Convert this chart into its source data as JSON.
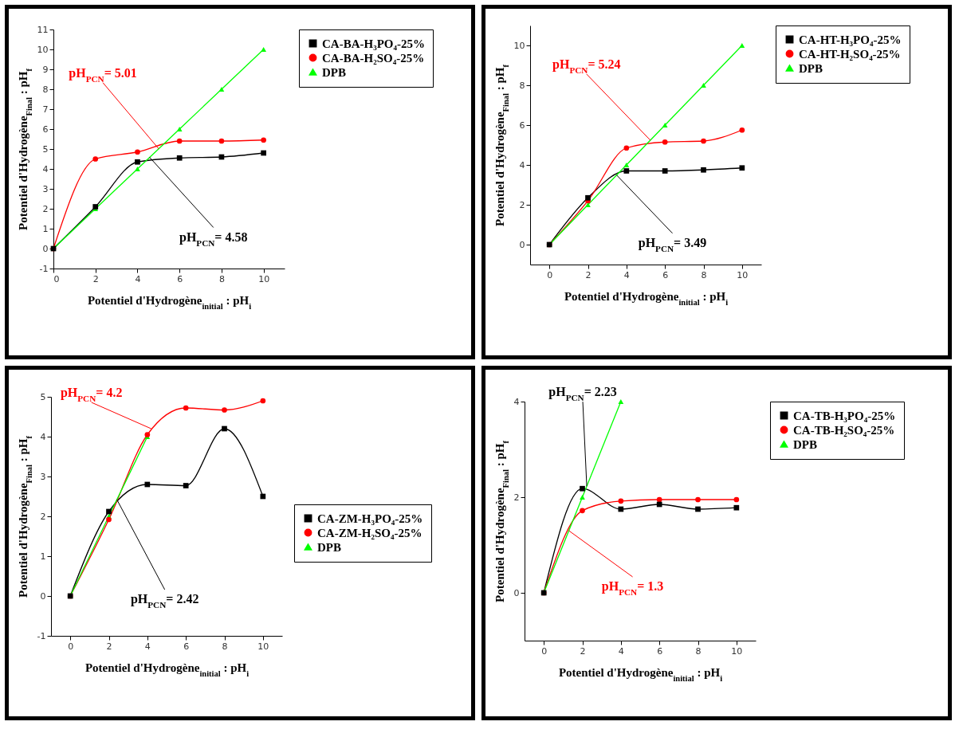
{
  "chart_data": [
    {
      "type": "line",
      "xlabel": "Potentiel d'Hydrogène$_{initial}$ : pH$_{i}$",
      "ylabel": "Potentiel d'Hydrogène$_{Final}$ : pH$_{f}$",
      "x": [
        0,
        2,
        4,
        6,
        8,
        10
      ],
      "xlim": [
        0,
        11
      ],
      "xticks": [
        0,
        2,
        4,
        6,
        8,
        10
      ],
      "ylim": [
        -1,
        11
      ],
      "yticks": [
        -1,
        0,
        1,
        2,
        3,
        4,
        5,
        6,
        7,
        8,
        9,
        10,
        11
      ],
      "grid": false,
      "legend": "top right",
      "series": [
        {
          "name": "CA-BA-H₃PO₄-25%",
          "color": "#000000",
          "marker": "square",
          "values": [
            0,
            2.1,
            4.35,
            4.55,
            4.6,
            4.8
          ]
        },
        {
          "name": "CA-BA-H₂SO₄-25%",
          "color": "#ff0000",
          "marker": "circle",
          "values": [
            0,
            4.5,
            4.85,
            5.4,
            5.4,
            5.45
          ]
        },
        {
          "name": "DPB",
          "color": "#00ff00",
          "marker": "triangle",
          "values": [
            0,
            2,
            4,
            6,
            8,
            10
          ]
        }
      ],
      "annotations": [
        {
          "text": "pH$_{PCN}$= 4.58",
          "x": 4.58,
          "y": 4.58
        },
        {
          "text": "pH$_{PCN}$= 5.01",
          "x": 5.01,
          "y": 5.01
        }
      ]
    },
    {
      "type": "line",
      "xlabel": "Potentiel d'Hydrogène$_{initial}$ : pH$_{i}$",
      "ylabel": "Potentiel d'Hydrogène$_{Final}$ : pH$_{f}$",
      "x": [
        0,
        2,
        4,
        6,
        8,
        10
      ],
      "xlim": [
        -1,
        11
      ],
      "xticks": [
        0,
        2,
        4,
        6,
        8,
        10
      ],
      "ylim": [
        -1,
        11
      ],
      "yticks": [
        0,
        2,
        4,
        6,
        8,
        10
      ],
      "grid": false,
      "legend": "top right",
      "series": [
        {
          "name": "CA-HT-H₃PO₄-25%",
          "color": "#000000",
          "marker": "square",
          "values": [
            0,
            2.35,
            3.7,
            3.7,
            3.75,
            3.85
          ]
        },
        {
          "name": "CA-HT-H₂SO₄-25%",
          "color": "#ff0000",
          "marker": "circle",
          "values": [
            0,
            2.2,
            4.85,
            5.15,
            5.2,
            5.75
          ]
        },
        {
          "name": "DPB",
          "color": "#00ff00",
          "marker": "triangle",
          "values": [
            0,
            2,
            4,
            6,
            8,
            10
          ]
        }
      ],
      "annotations": [
        {
          "text": "pH$_{PCN}$= 3.49",
          "x": 3.49,
          "y": 3.49
        },
        {
          "text": "pH$_{PCN}$= 5.24",
          "x": 5.24,
          "y": 5.24
        }
      ]
    },
    {
      "type": "line",
      "xlabel": "Potentiel d'Hydrogène$_{initial}$ : pH$_{i}$",
      "ylabel": "Potentiel d'Hydrogène$_{Final}$ : pH$_{f}$",
      "x": [
        0,
        2,
        4,
        6,
        8,
        10
      ],
      "xlim": [
        -1,
        11
      ],
      "xticks": [
        0,
        2,
        4,
        6,
        8,
        10
      ],
      "ylim": [
        -1,
        5
      ],
      "yticks": [
        -1,
        0,
        1,
        2,
        3,
        4,
        5
      ],
      "grid": false,
      "legend": "right",
      "series": [
        {
          "name": "CA-ZM-H₃PO₄-25%",
          "color": "#000000",
          "marker": "square",
          "values": [
            0,
            2.12,
            2.8,
            2.77,
            4.2,
            2.5
          ]
        },
        {
          "name": "CA-ZM-H₂SO₄-25%",
          "color": "#ff0000",
          "marker": "circle",
          "values": [
            0,
            1.92,
            4.05,
            4.72,
            4.67,
            4.9
          ]
        },
        {
          "name": "DPB",
          "color": "#00ff00",
          "marker": "triangle",
          "values": [
            0,
            2,
            4,
            null,
            null,
            null
          ]
        }
      ],
      "annotations": [
        {
          "text": "pH$_{PCN}$= 2.42",
          "x": 2.42,
          "y": 2.42
        },
        {
          "text": "pH$_{PCN}$= 4.2",
          "x": 4.2,
          "y": 4.2
        }
      ]
    },
    {
      "type": "line",
      "xlabel": "Potentiel d'Hydrogène$_{initial}$ : pH$_{i}$",
      "ylabel": "Potentiel d'Hydrogène$_{Final}$ : pH$_{f}$",
      "x": [
        0,
        2,
        4,
        6,
        8,
        10
      ],
      "xlim": [
        -1,
        11
      ],
      "xticks": [
        0,
        2,
        4,
        6,
        8,
        10
      ],
      "ylim": [
        -1,
        4
      ],
      "yticks": [
        0,
        2,
        4
      ],
      "grid": false,
      "legend": "top right",
      "series": [
        {
          "name": "CA-TB-H₃PO₄-25%",
          "color": "#000000",
          "marker": "square",
          "values": [
            0,
            2.18,
            1.75,
            1.85,
            1.75,
            1.78
          ]
        },
        {
          "name": "CA-TB-H₂SO₄-25%",
          "color": "#ff0000",
          "marker": "circle",
          "values": [
            0,
            1.72,
            1.92,
            1.95,
            1.95,
            1.95
          ]
        },
        {
          "name": "DPB",
          "color": "#00ff00",
          "marker": "triangle",
          "values": [
            0,
            2,
            4,
            null,
            null,
            null
          ]
        }
      ],
      "annotations": [
        {
          "text": "pH$_{PCN}$= 2.23",
          "x": 2.23,
          "y": 2.23
        },
        {
          "text": "pH$_{PCN}$= 1.3",
          "x": 1.3,
          "y": 1.3
        }
      ]
    }
  ]
}
